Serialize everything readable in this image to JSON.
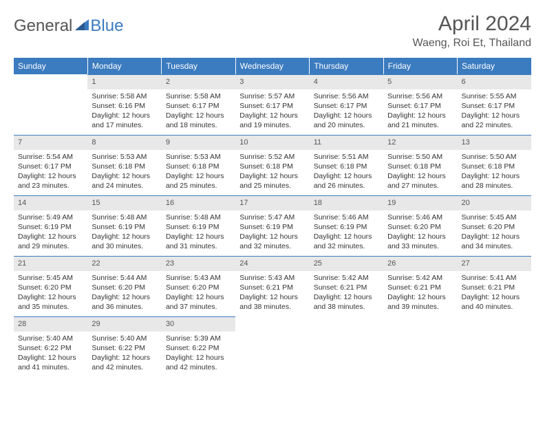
{
  "brand": {
    "part1": "General",
    "part2": "Blue"
  },
  "title": "April 2024",
  "location": "Waeng, Roi Et, Thailand",
  "colors": {
    "header_bg": "#3b7bbf",
    "daynum_bg": "#e8e8e8",
    "rule": "#3b7bbf",
    "text": "#333333",
    "muted": "#555555",
    "page_bg": "#ffffff"
  },
  "typography": {
    "title_fontsize": 30,
    "location_fontsize": 16,
    "dayhead_fontsize": 12,
    "cell_fontsize": 10.5
  },
  "day_headers": [
    "Sunday",
    "Monday",
    "Tuesday",
    "Wednesday",
    "Thursday",
    "Friday",
    "Saturday"
  ],
  "weeks": [
    [
      null,
      {
        "n": "1",
        "sr": "Sunrise: 5:58 AM",
        "ss": "Sunset: 6:16 PM",
        "d1": "Daylight: 12 hours",
        "d2": "and 17 minutes."
      },
      {
        "n": "2",
        "sr": "Sunrise: 5:58 AM",
        "ss": "Sunset: 6:17 PM",
        "d1": "Daylight: 12 hours",
        "d2": "and 18 minutes."
      },
      {
        "n": "3",
        "sr": "Sunrise: 5:57 AM",
        "ss": "Sunset: 6:17 PM",
        "d1": "Daylight: 12 hours",
        "d2": "and 19 minutes."
      },
      {
        "n": "4",
        "sr": "Sunrise: 5:56 AM",
        "ss": "Sunset: 6:17 PM",
        "d1": "Daylight: 12 hours",
        "d2": "and 20 minutes."
      },
      {
        "n": "5",
        "sr": "Sunrise: 5:56 AM",
        "ss": "Sunset: 6:17 PM",
        "d1": "Daylight: 12 hours",
        "d2": "and 21 minutes."
      },
      {
        "n": "6",
        "sr": "Sunrise: 5:55 AM",
        "ss": "Sunset: 6:17 PM",
        "d1": "Daylight: 12 hours",
        "d2": "and 22 minutes."
      }
    ],
    [
      {
        "n": "7",
        "sr": "Sunrise: 5:54 AM",
        "ss": "Sunset: 6:17 PM",
        "d1": "Daylight: 12 hours",
        "d2": "and 23 minutes."
      },
      {
        "n": "8",
        "sr": "Sunrise: 5:53 AM",
        "ss": "Sunset: 6:18 PM",
        "d1": "Daylight: 12 hours",
        "d2": "and 24 minutes."
      },
      {
        "n": "9",
        "sr": "Sunrise: 5:53 AM",
        "ss": "Sunset: 6:18 PM",
        "d1": "Daylight: 12 hours",
        "d2": "and 25 minutes."
      },
      {
        "n": "10",
        "sr": "Sunrise: 5:52 AM",
        "ss": "Sunset: 6:18 PM",
        "d1": "Daylight: 12 hours",
        "d2": "and 25 minutes."
      },
      {
        "n": "11",
        "sr": "Sunrise: 5:51 AM",
        "ss": "Sunset: 6:18 PM",
        "d1": "Daylight: 12 hours",
        "d2": "and 26 minutes."
      },
      {
        "n": "12",
        "sr": "Sunrise: 5:50 AM",
        "ss": "Sunset: 6:18 PM",
        "d1": "Daylight: 12 hours",
        "d2": "and 27 minutes."
      },
      {
        "n": "13",
        "sr": "Sunrise: 5:50 AM",
        "ss": "Sunset: 6:18 PM",
        "d1": "Daylight: 12 hours",
        "d2": "and 28 minutes."
      }
    ],
    [
      {
        "n": "14",
        "sr": "Sunrise: 5:49 AM",
        "ss": "Sunset: 6:19 PM",
        "d1": "Daylight: 12 hours",
        "d2": "and 29 minutes."
      },
      {
        "n": "15",
        "sr": "Sunrise: 5:48 AM",
        "ss": "Sunset: 6:19 PM",
        "d1": "Daylight: 12 hours",
        "d2": "and 30 minutes."
      },
      {
        "n": "16",
        "sr": "Sunrise: 5:48 AM",
        "ss": "Sunset: 6:19 PM",
        "d1": "Daylight: 12 hours",
        "d2": "and 31 minutes."
      },
      {
        "n": "17",
        "sr": "Sunrise: 5:47 AM",
        "ss": "Sunset: 6:19 PM",
        "d1": "Daylight: 12 hours",
        "d2": "and 32 minutes."
      },
      {
        "n": "18",
        "sr": "Sunrise: 5:46 AM",
        "ss": "Sunset: 6:19 PM",
        "d1": "Daylight: 12 hours",
        "d2": "and 32 minutes."
      },
      {
        "n": "19",
        "sr": "Sunrise: 5:46 AM",
        "ss": "Sunset: 6:20 PM",
        "d1": "Daylight: 12 hours",
        "d2": "and 33 minutes."
      },
      {
        "n": "20",
        "sr": "Sunrise: 5:45 AM",
        "ss": "Sunset: 6:20 PM",
        "d1": "Daylight: 12 hours",
        "d2": "and 34 minutes."
      }
    ],
    [
      {
        "n": "21",
        "sr": "Sunrise: 5:45 AM",
        "ss": "Sunset: 6:20 PM",
        "d1": "Daylight: 12 hours",
        "d2": "and 35 minutes."
      },
      {
        "n": "22",
        "sr": "Sunrise: 5:44 AM",
        "ss": "Sunset: 6:20 PM",
        "d1": "Daylight: 12 hours",
        "d2": "and 36 minutes."
      },
      {
        "n": "23",
        "sr": "Sunrise: 5:43 AM",
        "ss": "Sunset: 6:20 PM",
        "d1": "Daylight: 12 hours",
        "d2": "and 37 minutes."
      },
      {
        "n": "24",
        "sr": "Sunrise: 5:43 AM",
        "ss": "Sunset: 6:21 PM",
        "d1": "Daylight: 12 hours",
        "d2": "and 38 minutes."
      },
      {
        "n": "25",
        "sr": "Sunrise: 5:42 AM",
        "ss": "Sunset: 6:21 PM",
        "d1": "Daylight: 12 hours",
        "d2": "and 38 minutes."
      },
      {
        "n": "26",
        "sr": "Sunrise: 5:42 AM",
        "ss": "Sunset: 6:21 PM",
        "d1": "Daylight: 12 hours",
        "d2": "and 39 minutes."
      },
      {
        "n": "27",
        "sr": "Sunrise: 5:41 AM",
        "ss": "Sunset: 6:21 PM",
        "d1": "Daylight: 12 hours",
        "d2": "and 40 minutes."
      }
    ],
    [
      {
        "n": "28",
        "sr": "Sunrise: 5:40 AM",
        "ss": "Sunset: 6:22 PM",
        "d1": "Daylight: 12 hours",
        "d2": "and 41 minutes."
      },
      {
        "n": "29",
        "sr": "Sunrise: 5:40 AM",
        "ss": "Sunset: 6:22 PM",
        "d1": "Daylight: 12 hours",
        "d2": "and 42 minutes."
      },
      {
        "n": "30",
        "sr": "Sunrise: 5:39 AM",
        "ss": "Sunset: 6:22 PM",
        "d1": "Daylight: 12 hours",
        "d2": "and 42 minutes."
      },
      null,
      null,
      null,
      null
    ]
  ]
}
